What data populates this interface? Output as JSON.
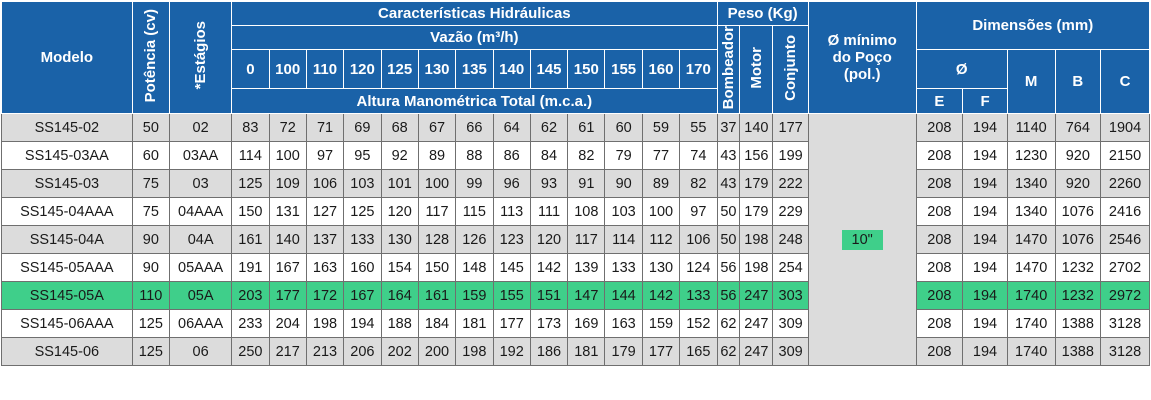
{
  "header": {
    "modelo": "Modelo",
    "potencia": "Potência (cv)",
    "estagios": "*Estágios",
    "caracteristicas": "Características Hidráulicas",
    "vazao": "Vazão (m³/h)",
    "altura": "Altura Manométrica Total (m.c.a.)",
    "peso": "Peso (Kg)",
    "bombeador": "Bombeador",
    "motor": "Motor",
    "conjunto": "Conjunto",
    "minimo_line1": "Ø mínimo",
    "minimo_line2": "do Poço",
    "minimo_line3": "(pol.)",
    "dimensoes": "Dimensões (mm)",
    "diam": "Ø",
    "e": "E",
    "f": "F",
    "m": "M",
    "b": "B",
    "c": "C",
    "flows": [
      "0",
      "100",
      "110",
      "120",
      "125",
      "130",
      "135",
      "140",
      "145",
      "150",
      "155",
      "160",
      "170"
    ]
  },
  "poco_value": "10\"",
  "rows": [
    {
      "modelo": "SS145-02",
      "pot": "50",
      "est": "02",
      "h": [
        "83",
        "72",
        "71",
        "69",
        "68",
        "67",
        "66",
        "64",
        "62",
        "61",
        "60",
        "59",
        "55"
      ],
      "bomb": "37",
      "motor": "140",
      "conj": "177",
      "e": "208",
      "f": "194",
      "m": "1140",
      "b": "764",
      "c": "1904"
    },
    {
      "modelo": "SS145-03AA",
      "pot": "60",
      "est": "03AA",
      "h": [
        "114",
        "100",
        "97",
        "95",
        "92",
        "89",
        "88",
        "86",
        "84",
        "82",
        "79",
        "77",
        "74"
      ],
      "bomb": "43",
      "motor": "156",
      "conj": "199",
      "e": "208",
      "f": "194",
      "m": "1230",
      "b": "920",
      "c": "2150"
    },
    {
      "modelo": "SS145-03",
      "pot": "75",
      "est": "03",
      "h": [
        "125",
        "109",
        "106",
        "103",
        "101",
        "100",
        "99",
        "96",
        "93",
        "91",
        "90",
        "89",
        "82"
      ],
      "bomb": "43",
      "motor": "179",
      "conj": "222",
      "e": "208",
      "f": "194",
      "m": "1340",
      "b": "920",
      "c": "2260"
    },
    {
      "modelo": "SS145-04AAA",
      "pot": "75",
      "est": "04AAA",
      "h": [
        "150",
        "131",
        "127",
        "125",
        "120",
        "117",
        "115",
        "113",
        "111",
        "108",
        "103",
        "100",
        "97"
      ],
      "bomb": "50",
      "motor": "179",
      "conj": "229",
      "e": "208",
      "f": "194",
      "m": "1340",
      "b": "1076",
      "c": "2416"
    },
    {
      "modelo": "SS145-04A",
      "pot": "90",
      "est": "04A",
      "h": [
        "161",
        "140",
        "137",
        "133",
        "130",
        "128",
        "126",
        "123",
        "120",
        "117",
        "114",
        "112",
        "106"
      ],
      "bomb": "50",
      "motor": "198",
      "conj": "248",
      "e": "208",
      "f": "194",
      "m": "1470",
      "b": "1076",
      "c": "2546"
    },
    {
      "modelo": "SS145-05AAA",
      "pot": "90",
      "est": "05AAA",
      "h": [
        "191",
        "167",
        "163",
        "160",
        "154",
        "150",
        "148",
        "145",
        "142",
        "139",
        "133",
        "130",
        "124"
      ],
      "bomb": "56",
      "motor": "198",
      "conj": "254",
      "e": "208",
      "f": "194",
      "m": "1470",
      "b": "1232",
      "c": "2702"
    },
    {
      "modelo": "SS145-05A",
      "pot": "110",
      "est": "05A",
      "h": [
        "203",
        "177",
        "172",
        "167",
        "164",
        "161",
        "159",
        "155",
        "151",
        "147",
        "144",
        "142",
        "133"
      ],
      "bomb": "56",
      "motor": "247",
      "conj": "303",
      "e": "208",
      "f": "194",
      "m": "1740",
      "b": "1232",
      "c": "2972",
      "highlight": true
    },
    {
      "modelo": "SS145-06AAA",
      "pot": "125",
      "est": "06AAA",
      "h": [
        "233",
        "204",
        "198",
        "194",
        "188",
        "184",
        "181",
        "177",
        "173",
        "169",
        "163",
        "159",
        "152"
      ],
      "bomb": "62",
      "motor": "247",
      "conj": "309",
      "e": "208",
      "f": "194",
      "m": "1740",
      "b": "1388",
      "c": "3128"
    },
    {
      "modelo": "SS145-06",
      "pot": "125",
      "est": "06",
      "h": [
        "250",
        "217",
        "213",
        "206",
        "202",
        "200",
        "198",
        "192",
        "186",
        "181",
        "179",
        "177",
        "165"
      ],
      "bomb": "62",
      "motor": "247",
      "conj": "309",
      "e": "208",
      "f": "194",
      "m": "1740",
      "b": "1388",
      "c": "3128"
    }
  ]
}
